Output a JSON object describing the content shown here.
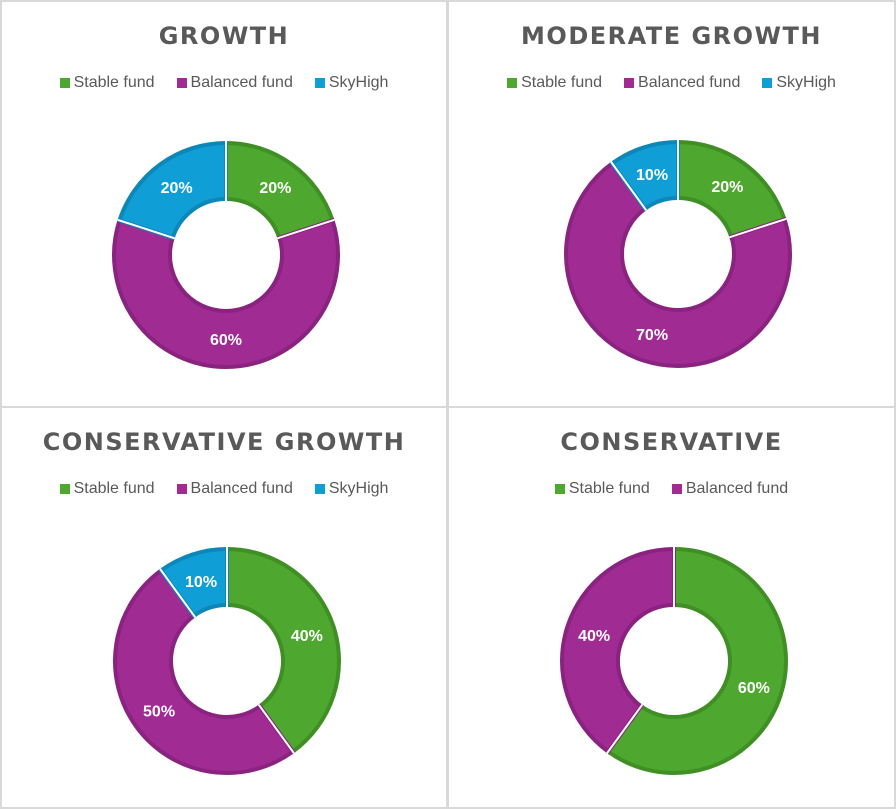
{
  "colors": {
    "stable": "#4ea72e",
    "balanced": "#a02b93",
    "skyhigh": "#0f9ed5"
  },
  "chart_data": [
    {
      "type": "pie",
      "title": "GROWTH",
      "legend": [
        "Stable fund",
        "Balanced fund",
        "SkyHigh"
      ],
      "categories": [
        "Stable fund",
        "Balanced fund",
        "SkyHigh"
      ],
      "values": [
        20,
        60,
        20
      ],
      "labels": [
        "20%",
        "60%",
        "20%"
      ],
      "keys": [
        "stable",
        "balanced",
        "skyhigh"
      ]
    },
    {
      "type": "pie",
      "title": "MODERATE GROWTH",
      "legend": [
        "Stable fund",
        "Balanced fund",
        "SkyHigh"
      ],
      "categories": [
        "Stable fund",
        "Balanced fund",
        "SkyHigh"
      ],
      "values": [
        20,
        70,
        10
      ],
      "labels": [
        "20%",
        "70%",
        "10%"
      ],
      "keys": [
        "stable",
        "balanced",
        "skyhigh"
      ]
    },
    {
      "type": "pie",
      "title": "CONSERVATIVE GROWTH",
      "legend": [
        "Stable fund",
        "Balanced fund",
        "SkyHigh"
      ],
      "categories": [
        "Stable fund",
        "Balanced fund",
        "SkyHigh"
      ],
      "values": [
        40,
        50,
        10
      ],
      "labels": [
        "40%",
        "50%",
        "10%"
      ],
      "keys": [
        "stable",
        "balanced",
        "skyhigh"
      ]
    },
    {
      "type": "pie",
      "title": "CONSERVATIVE",
      "legend": [
        "Stable fund",
        "Balanced fund"
      ],
      "categories": [
        "Stable fund",
        "Balanced fund"
      ],
      "values": [
        60,
        40
      ],
      "labels": [
        "60%",
        "40%"
      ],
      "keys": [
        "stable",
        "balanced"
      ]
    }
  ]
}
